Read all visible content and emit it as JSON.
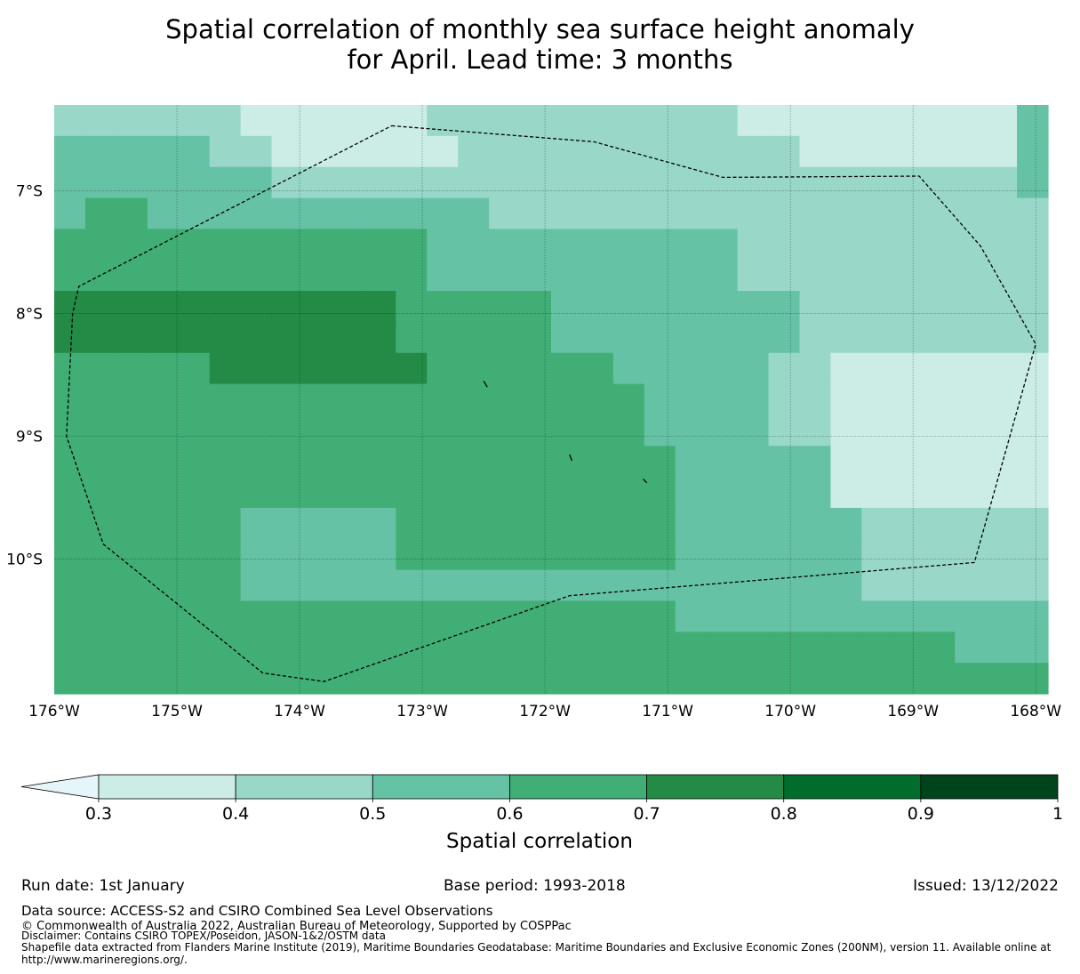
{
  "title": {
    "line1": "Spatial correlation of monthly sea surface height anomaly",
    "line2": "for April. Lead time: 3 months"
  },
  "map": {
    "lon_min": -176.0,
    "lon_max": -167.9,
    "lat_top": -6.3,
    "lat_bottom": -11.1,
    "lon_ticks": [
      {
        "value": -176,
        "label": "176°W"
      },
      {
        "value": -175,
        "label": "175°W"
      },
      {
        "value": -174,
        "label": "174°W"
      },
      {
        "value": -173,
        "label": "173°W"
      },
      {
        "value": -172,
        "label": "172°W"
      },
      {
        "value": -171,
        "label": "171°W"
      },
      {
        "value": -170,
        "label": "170°W"
      },
      {
        "value": -169,
        "label": "169°W"
      },
      {
        "value": -168,
        "label": "168°W"
      }
    ],
    "lat_ticks": [
      {
        "value": -7,
        "label": "7°S"
      },
      {
        "value": -8,
        "label": "8°S"
      },
      {
        "value": -9,
        "label": "9°S"
      },
      {
        "value": -10,
        "label": "10°S"
      }
    ],
    "grid_cols": 32,
    "grid_rows": 19,
    "grid_rows_data": [
      "44444433333344444444443333333335",
      "55555443333334444444444433333335",
      "55555554444444444444444444444445",
      "56655555555555444444444444444444",
      "66666666666655555555554444444444",
      "66666666666655555555554444444444",
      "77777777777666665555555544444444",
      "77777777777666665555555544444444",
      "66666777777766666655555443333333",
      "66666666666666666665555443333333",
      "66666666666666666665555443333333",
      "66666666666666666666555553333333",
      "66666666666666666666555553333333",
      "66666655555666666666555555444444",
      "66666655555666666666555555444444",
      "66666655555555555555555555444444",
      "66666666666666666666555555555555",
      "66666666666666666666666666666555",
      "66666666666666666666666666666666"
    ],
    "eez_boundary": [
      [
        -173.25,
        -6.47
      ],
      [
        -171.6,
        -6.6
      ],
      [
        -170.55,
        -6.89
      ],
      [
        -168.95,
        -6.88
      ],
      [
        -168.45,
        -7.45
      ],
      [
        -168.0,
        -8.25
      ],
      [
        -168.5,
        -10.03
      ],
      [
        -171.8,
        -10.3
      ],
      [
        -173.8,
        -11.0
      ],
      [
        -174.3,
        -10.93
      ],
      [
        -175.6,
        -9.88
      ],
      [
        -175.9,
        -9.0
      ],
      [
        -175.85,
        -8.0
      ],
      [
        -175.8,
        -7.78
      ],
      [
        -173.25,
        -6.47
      ]
    ],
    "islands": [
      [
        [
          -172.5,
          -8.55
        ],
        [
          -172.47,
          -8.6
        ]
      ],
      [
        [
          -171.8,
          -9.15
        ],
        [
          -171.78,
          -9.2
        ]
      ],
      [
        [
          -171.2,
          -9.35
        ],
        [
          -171.17,
          -9.38
        ]
      ]
    ]
  },
  "colorbar": {
    "label": "Spatial correlation",
    "ticks": [
      "0.3",
      "0.4",
      "0.5",
      "0.6",
      "0.7",
      "0.8",
      "0.9",
      "1"
    ],
    "colors": [
      "#e5f5f9",
      "#ccece6",
      "#99d8c9",
      "#66c2a4",
      "#41ae76",
      "#238b45",
      "#006d2c",
      "#00441b"
    ]
  },
  "footer": {
    "run_date": "Run date: 1st January",
    "base_period": "Base period: 1993-2018",
    "issued": "Issued: 13/12/2022",
    "data_source": "Data source: ACCESS-S2 and CSIRO Combined Sea Level Observations",
    "copyright": "© Commonwealth of Australia 2022, Australian Bureau of Meteorology, Supported by COSPPac",
    "disclaimer": "Disclaimer: Contains CSIRO TOPEX/Poseidon, JASON-1&2/OSTM data",
    "shapefile_line1": "Shapefile data extracted from Flanders Marine Institute (2019), Maritime Boundaries Geodatabase: Maritime Boundaries and Exclusive Economic Zones (200NM), version 11. Available online at",
    "shapefile_line2": "http://www.marineregions.org/."
  }
}
